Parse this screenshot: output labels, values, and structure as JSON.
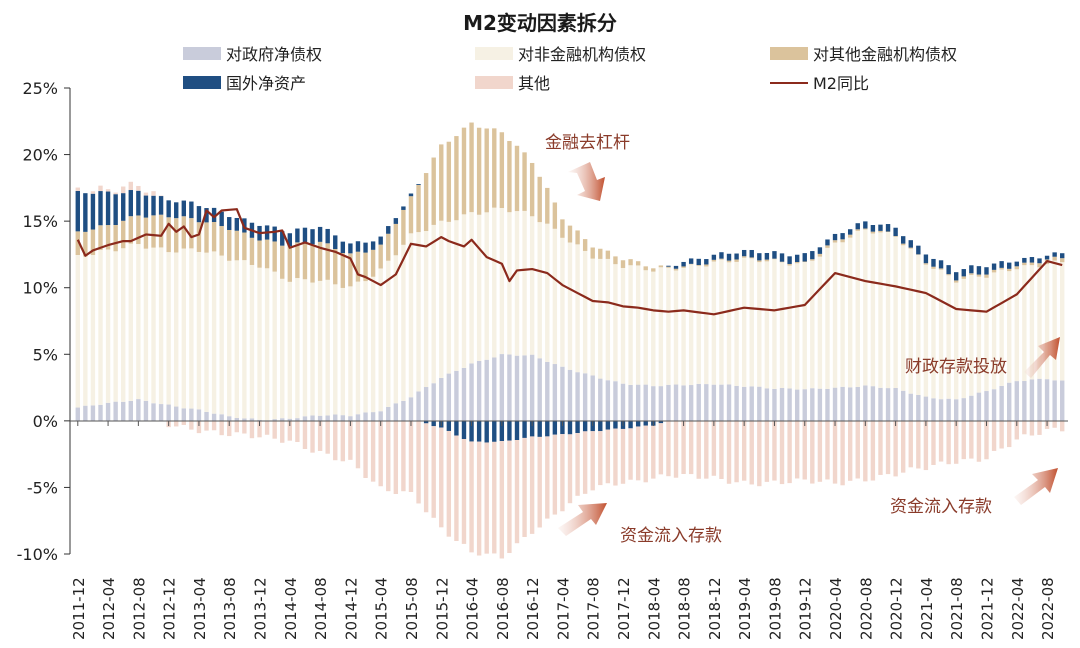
{
  "chart_data": {
    "type": "bar",
    "stacked": true,
    "title": "M2变动因素拆分",
    "ylim": [
      -10,
      25
    ],
    "yticks": [
      "25%",
      "20%",
      "15%",
      "10%",
      "5%",
      "0%",
      "-5%",
      "-10%"
    ],
    "ytick_values": [
      25,
      20,
      15,
      10,
      5,
      0,
      -5,
      -10
    ],
    "xtick_labels": [
      "2011-12",
      "2012-04",
      "2012-08",
      "2012-12",
      "2013-04",
      "2013-08",
      "2013-12",
      "2014-04",
      "2014-08",
      "2014-12",
      "2015-04",
      "2015-08",
      "2015-12",
      "2016-04",
      "2016-08",
      "2016-12",
      "2017-04",
      "2017-08",
      "2017-12",
      "2018-04",
      "2018-08",
      "2018-12",
      "2019-04",
      "2019-08",
      "2019-12",
      "2020-04",
      "2020-08",
      "2020-12",
      "2021-04",
      "2021-08",
      "2021-12",
      "2022-04",
      "2022-08"
    ],
    "series_anchor_months": [
      0,
      4,
      8,
      12,
      16,
      20,
      24,
      28,
      32,
      36,
      40,
      44,
      48,
      52,
      56,
      60,
      64,
      68,
      72,
      76,
      80,
      84,
      88,
      92,
      96,
      100,
      104,
      108,
      112,
      116,
      120,
      124,
      128,
      130
    ],
    "series": [
      {
        "name": "对政府净债权",
        "color": "#c9ccdb",
        "stack": "pos",
        "values": [
          1.0,
          1.3,
          1.6,
          1.2,
          0.8,
          0.3,
          0.1,
          0.2,
          0.4,
          0.4,
          0.8,
          1.8,
          3.2,
          4.3,
          5.0,
          4.9,
          4.0,
          3.4,
          2.8,
          2.6,
          2.7,
          2.8,
          2.6,
          2.4,
          2.4,
          2.5,
          2.6,
          2.4,
          1.8,
          1.6,
          2.2,
          3.0,
          3.2,
          3.0
        ]
      },
      {
        "name": "对非金融机构债权",
        "color": "#f6f1e4",
        "stack": "pos",
        "values": [
          11.2,
          11.4,
          11.8,
          11.6,
          11.9,
          11.9,
          11.7,
          10.3,
          10.0,
          9.7,
          10.6,
          12.0,
          11.6,
          11.4,
          11.0,
          10.4,
          9.9,
          9.1,
          8.8,
          8.6,
          8.9,
          9.2,
          9.4,
          9.5,
          9.5,
          10.8,
          11.6,
          11.5,
          10.2,
          8.9,
          8.6,
          8.6,
          8.7,
          8.9
        ]
      },
      {
        "name": "对其他金融机构债权",
        "color": "#dbc39c",
        "stack": "pos",
        "values": [
          1.8,
          1.9,
          2.2,
          2.6,
          2.2,
          2.3,
          2.0,
          2.6,
          2.9,
          2.5,
          1.8,
          2.8,
          5.8,
          6.8,
          5.7,
          4.0,
          1.4,
          0.8,
          0.5,
          0.2,
          0.1,
          0.1,
          0.1,
          0.1,
          0.1,
          0.2,
          0.1,
          0.1,
          0.1,
          0.1,
          0.2,
          0.2,
          0.3,
          0.3
        ]
      },
      {
        "name": "国外净资产",
        "color": "#1f4e82",
        "stack": "signed",
        "values": [
          3.0,
          2.5,
          1.8,
          1.2,
          1.2,
          1.0,
          1.1,
          1.0,
          1.2,
          0.8,
          0.6,
          0.2,
          -0.5,
          -1.6,
          -1.6,
          -1.2,
          -1.0,
          -0.8,
          -0.6,
          -0.3,
          0.4,
          0.4,
          0.5,
          0.6,
          0.6,
          0.4,
          0.5,
          0.6,
          0.6,
          0.6,
          0.6,
          0.4,
          0.3,
          0.3
        ]
      },
      {
        "name": "其他",
        "color": "#f1d6cc",
        "stack": "neg",
        "values": [
          0.3,
          0.3,
          0.4,
          -0.3,
          -0.6,
          -1.0,
          -1.3,
          -1.5,
          -2.3,
          -3.2,
          -5.2,
          -5.4,
          -7.5,
          -8.4,
          -8.7,
          -7.0,
          -5.6,
          -4.4,
          -4.0,
          -3.9,
          -4.2,
          -4.4,
          -4.6,
          -4.6,
          -4.6,
          -4.7,
          -4.3,
          -4.0,
          -3.6,
          -3.0,
          -2.7,
          -1.5,
          -0.8,
          -0.6
        ]
      }
    ],
    "line": {
      "name": "M2同比",
      "color": "#8b2a1c",
      "x": [
        0,
        1,
        2,
        4,
        6,
        7,
        9,
        11,
        12,
        13,
        14,
        15,
        16,
        17,
        18,
        19,
        21,
        22,
        24,
        26,
        27,
        28,
        30,
        32,
        34,
        36,
        37,
        38,
        40,
        42,
        44,
        46,
        48,
        49,
        50,
        51,
        52,
        54,
        56,
        57,
        58,
        60,
        62,
        64,
        66,
        68,
        70,
        72,
        74,
        76,
        78,
        80,
        84,
        88,
        92,
        96,
        100,
        104,
        108,
        112,
        116,
        120,
        124,
        128,
        130
      ],
      "values": [
        13.6,
        12.4,
        12.8,
        13.2,
        13.5,
        13.5,
        14.0,
        13.9,
        14.8,
        14.2,
        14.6,
        13.8,
        14.0,
        15.8,
        15.3,
        15.8,
        15.9,
        14.5,
        14.1,
        14.2,
        14.3,
        13.0,
        13.4,
        13.0,
        12.7,
        12.2,
        11.0,
        10.8,
        10.2,
        11.0,
        13.3,
        13.1,
        13.8,
        13.5,
        13.3,
        13.1,
        13.6,
        12.3,
        11.8,
        10.5,
        11.3,
        11.4,
        11.1,
        10.2,
        9.6,
        9.0,
        8.9,
        8.6,
        8.5,
        8.3,
        8.2,
        8.3,
        8.0,
        8.5,
        8.3,
        8.7,
        11.1,
        10.5,
        10.1,
        9.6,
        8.4,
        8.2,
        9.5,
        12.0,
        11.7
      ]
    }
  },
  "legend": [
    {
      "label": "对政府净债权",
      "color": "#c9ccdb",
      "kind": "box"
    },
    {
      "label": "对非金融机构债权",
      "color": "#f6f1e4",
      "kind": "box"
    },
    {
      "label": "对其他金融机构债权",
      "color": "#dbc39c",
      "kind": "box"
    },
    {
      "label": "国外净资产",
      "color": "#1f4e82",
      "kind": "box"
    },
    {
      "label": "其他",
      "color": "#f1d6cc",
      "kind": "box"
    },
    {
      "label": "M2同比",
      "color": "#8b2a1c",
      "kind": "line"
    }
  ],
  "annotations": [
    {
      "text": "金融去杠杆"
    },
    {
      "text": "财政存款投放"
    },
    {
      "text": "资金流入存款"
    },
    {
      "text": "资金流入存款"
    }
  ]
}
